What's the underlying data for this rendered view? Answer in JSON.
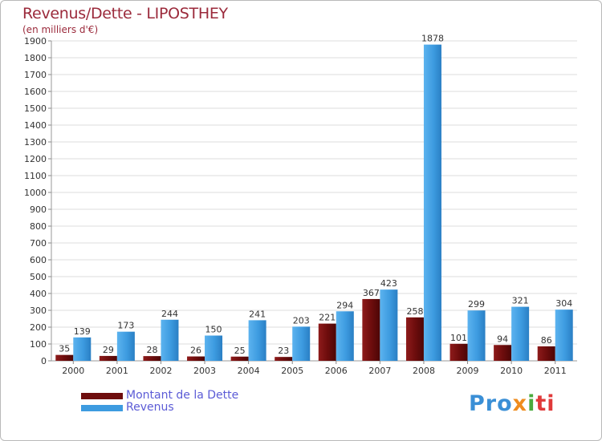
{
  "chart_data": {
    "type": "bar",
    "title": "Revenus/Dette - LIPOSTHEY",
    "subtitle": "(en milliers d'€)",
    "categories": [
      "2000",
      "2001",
      "2002",
      "2003",
      "2004",
      "2005",
      "2006",
      "2007",
      "2008",
      "2009",
      "2010",
      "2011"
    ],
    "series": [
      {
        "name": "Montant de la Dette",
        "color": "#7a1010",
        "values": [
          35,
          29,
          28,
          26,
          25,
          23,
          221,
          367,
          258,
          101,
          94,
          86
        ]
      },
      {
        "name": "Revenus",
        "color": "#3d9be0",
        "values": [
          139,
          173,
          244,
          150,
          241,
          203,
          294,
          423,
          1878,
          299,
          321,
          304
        ]
      }
    ],
    "ylim": [
      0,
      1900
    ],
    "yticks": [
      0,
      100,
      200,
      300,
      400,
      500,
      600,
      700,
      800,
      900,
      1000,
      1100,
      1200,
      1300,
      1400,
      1500,
      1600,
      1700,
      1800,
      1900
    ],
    "legend_position": "bottom-left"
  },
  "logo": {
    "part1": "Pro",
    "part2": "x",
    "part3": "i",
    "part4": "ti"
  }
}
